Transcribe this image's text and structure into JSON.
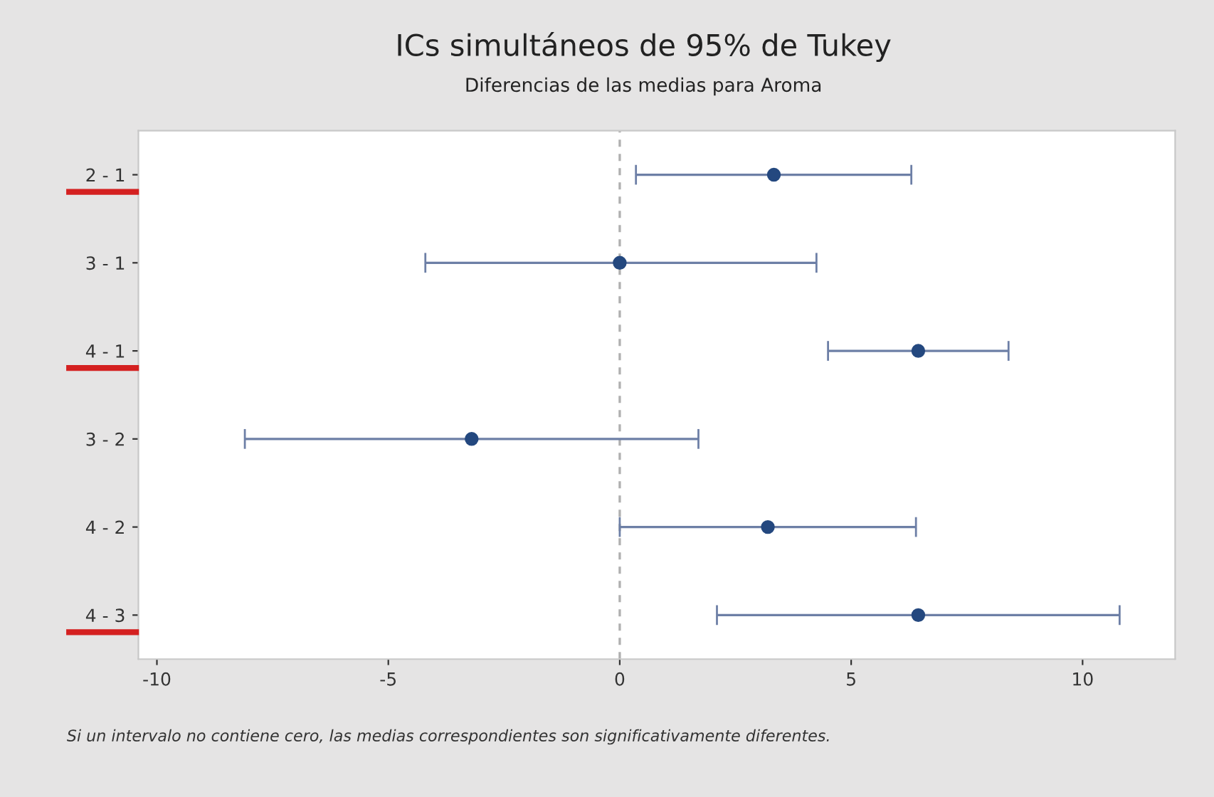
{
  "chart_data": {
    "type": "scatter",
    "orientation": "horizontal",
    "title": "ICs simultáneos de 95% de Tukey",
    "subtitle": "Diferencias de las medias para Aroma",
    "categories": [
      "2 - 1",
      "3 - 1",
      "4 - 1",
      "3 - 2",
      "4 - 2",
      "4 - 3"
    ],
    "values": [
      3.33,
      0,
      6.45,
      -3.2,
      3.2,
      6.45
    ],
    "errors": [
      [
        0.35,
        6.3
      ],
      [
        -4.2,
        4.25
      ],
      [
        4.5,
        8.4
      ],
      [
        -8.1,
        1.7
      ],
      [
        0,
        6.4
      ],
      [
        2.1,
        10.8
      ]
    ],
    "color": "#24487f",
    "marker": "circle",
    "xlim": [
      -10.4,
      12
    ],
    "xticks": [
      -10,
      -5,
      0,
      5,
      10
    ],
    "ref_lines": [
      {
        "axis": "x",
        "value": 0,
        "color": "#b0b0b0",
        "line_style": "dashed"
      }
    ],
    "grid": false,
    "annotations": [
      "Si un intervalo no contiene cero, las medias correspondientes son significativamente diferentes."
    ]
  }
}
